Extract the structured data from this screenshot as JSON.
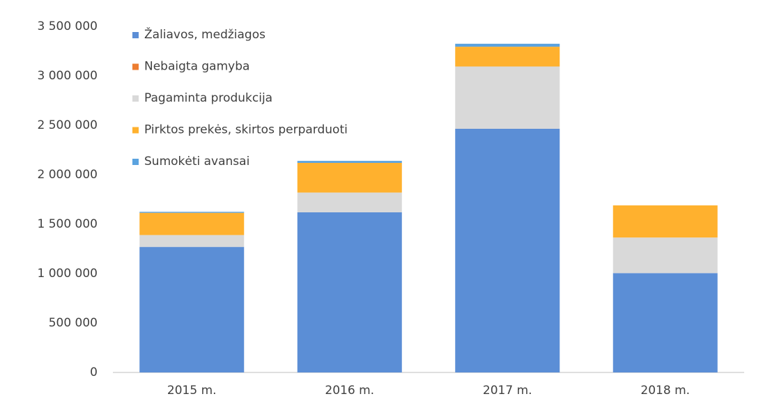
{
  "chart_data": {
    "type": "stacked_bar",
    "categories": [
      "2015 m.",
      "2016 m.",
      "2017 m.",
      "2018 m."
    ],
    "series": [
      {
        "name": "Žaliavos, medžiagos",
        "color": "#5b8ed6",
        "values": [
          1270000,
          1620000,
          2465000,
          1005000
        ]
      },
      {
        "name": "Nebaigta gamyba",
        "color": "#ed7d31",
        "values": [
          0,
          0,
          0,
          0
        ]
      },
      {
        "name": "Pagaminta produkcija",
        "color": "#d9d9d9",
        "values": [
          120000,
          200000,
          630000,
          360000
        ]
      },
      {
        "name": "Pirktos prekės, skirtos perparduoti",
        "color": "#ffb12e",
        "values": [
          225000,
          300000,
          200000,
          325000
        ]
      },
      {
        "name": "Sumokėti avansai",
        "color": "#5ba3df",
        "values": [
          10000,
          20000,
          30000,
          0
        ]
      }
    ],
    "ylim": [
      0,
      3500000
    ],
    "yticks": [
      0,
      {
        "value": 500000,
        "label": "500 000"
      },
      {
        "value": 1000000,
        "label": "1 000 000"
      },
      {
        "value": 1500000,
        "label": "1 500 000"
      },
      {
        "value": 2000000,
        "label": "2 000 000"
      },
      {
        "value": 2500000,
        "label": "2 500 000"
      },
      {
        "value": 3000000,
        "label": "3 000 000"
      },
      {
        "value": 3500000,
        "label": "3 500 000"
      }
    ],
    "legend": "upper left"
  }
}
